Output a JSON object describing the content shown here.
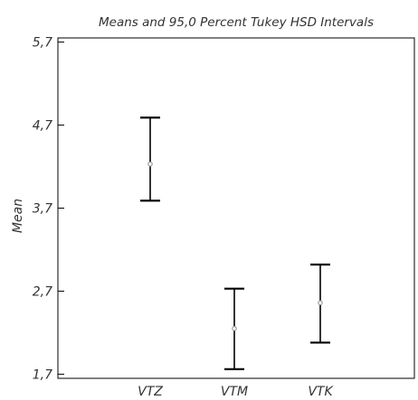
{
  "chart_data": {
    "type": "interval",
    "title": "Means and 95,0 Percent Tukey HSD Intervals",
    "xlabel": "",
    "ylabel": "Mean",
    "categories": [
      "VTZ",
      "VTM",
      "VTK"
    ],
    "means": [
      4.23,
      2.25,
      2.56
    ],
    "lower": [
      3.79,
      1.76,
      2.08
    ],
    "upper": [
      4.79,
      2.73,
      3.02
    ],
    "ylim": [
      1.65,
      5.75
    ],
    "yticks": [
      1.7,
      2.7,
      3.7,
      4.7,
      5.7
    ],
    "ytick_labels": [
      "1,7",
      "2,7",
      "3,7",
      "4,7",
      "5,7"
    ],
    "grid": false,
    "colors": {
      "interval": "#000000",
      "mean_marker": "#9a9a9a",
      "axes": "#000000",
      "text": "#333333"
    }
  }
}
